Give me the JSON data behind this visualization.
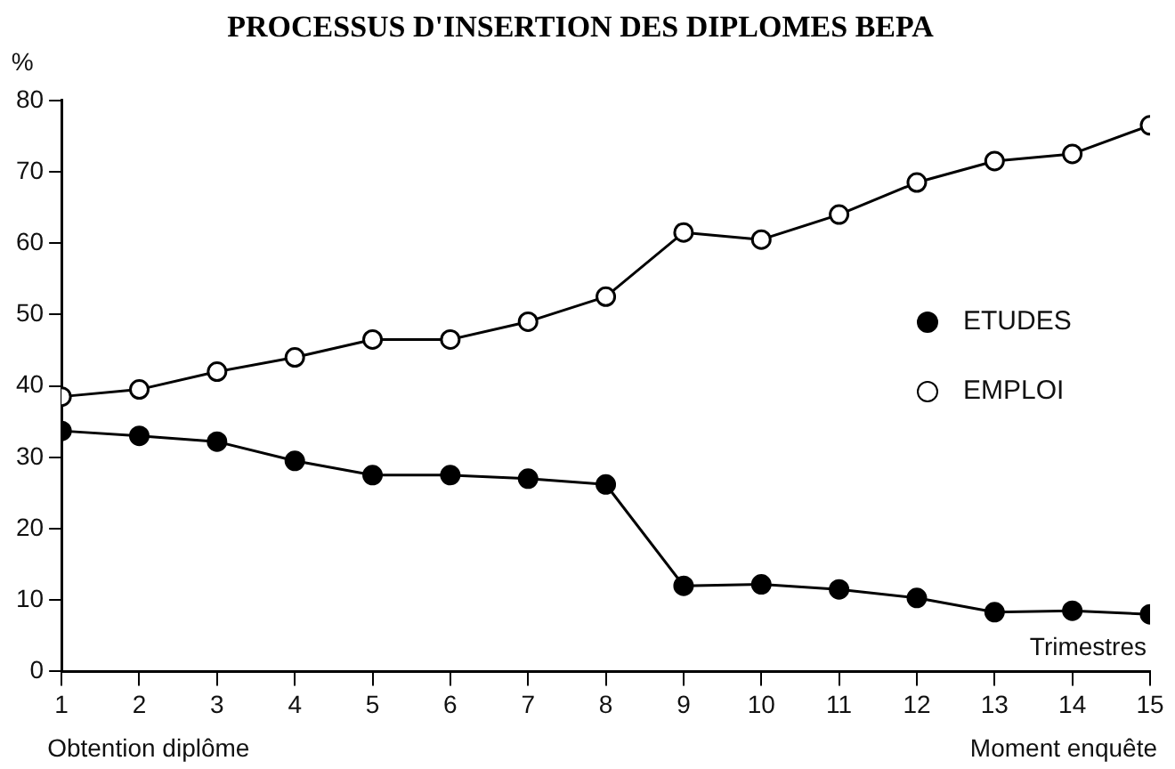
{
  "chart_data": {
    "type": "line",
    "title": "PROCESSUS D'INSERTION DES DIPLOMES BEPA",
    "ylabel": "%",
    "xlabel": "Trimestres",
    "x": [
      1,
      2,
      3,
      4,
      5,
      6,
      7,
      8,
      9,
      10,
      11,
      12,
      13,
      14,
      15
    ],
    "series": [
      {
        "name": "ETUDES",
        "color": "#000000",
        "values": [
          33.7,
          33,
          32.2,
          29.5,
          27.5,
          27.5,
          27,
          26.2,
          12,
          12.2,
          11.5,
          10.3,
          8.3,
          8.5,
          8
        ]
      },
      {
        "name": "EMPLOI",
        "color": "#000000",
        "values": [
          38.5,
          39.5,
          42,
          44,
          46.5,
          46.5,
          49,
          52.5,
          61.5,
          60.5,
          64,
          68.5,
          71.5,
          72.5,
          76.5
        ]
      }
    ],
    "xlim": [
      1,
      15
    ],
    "xticks": [
      1,
      2,
      3,
      4,
      5,
      6,
      7,
      8,
      9,
      10,
      11,
      12,
      13,
      14,
      15
    ],
    "ylim": [
      0,
      80
    ],
    "yticks": [
      0,
      10,
      20,
      30,
      40,
      50,
      60,
      70,
      80
    ],
    "grid": false,
    "legend": "right",
    "marker": "circle",
    "line_style": "solid",
    "annotations": [
      "Obtention diplôme",
      "Moment enquête"
    ]
  }
}
